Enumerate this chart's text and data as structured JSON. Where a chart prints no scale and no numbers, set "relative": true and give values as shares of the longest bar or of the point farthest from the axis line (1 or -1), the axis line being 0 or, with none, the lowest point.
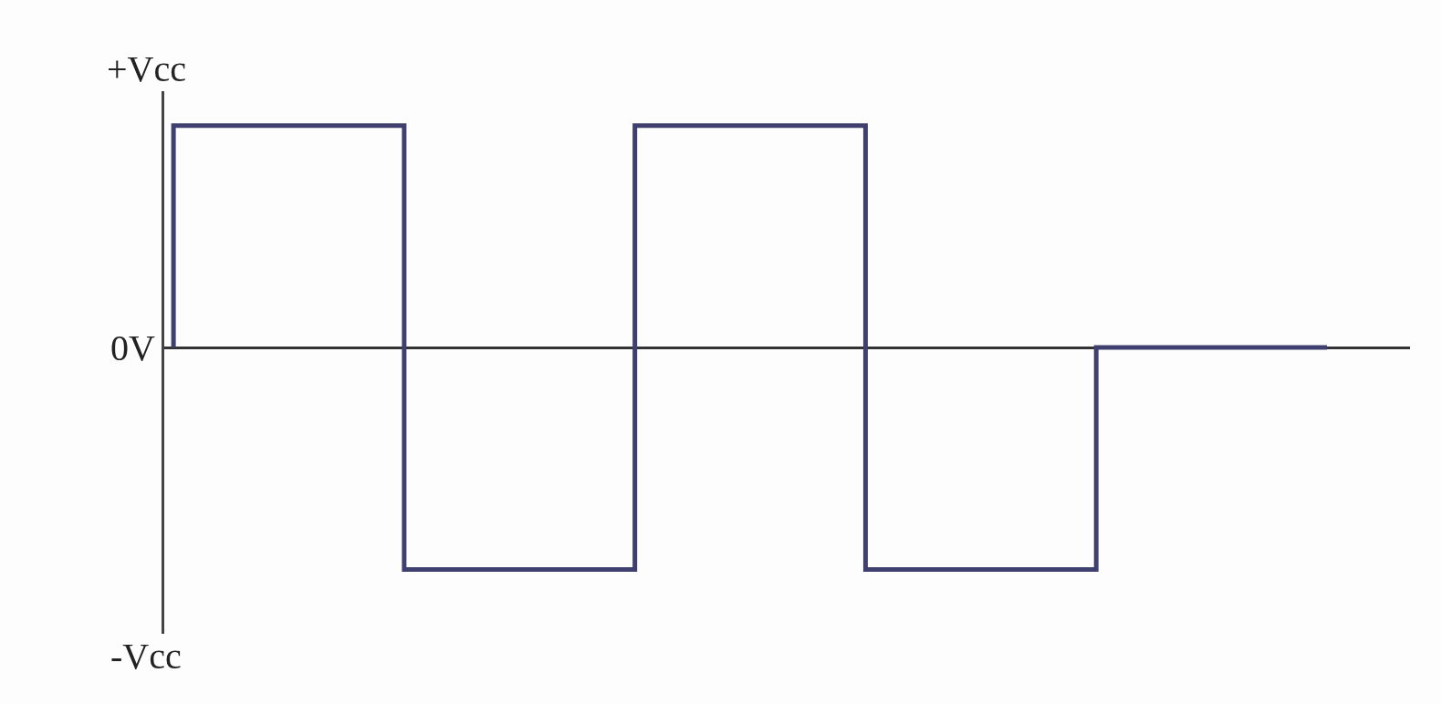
{
  "chart_data": {
    "type": "step",
    "categories": [
      null,
      null,
      null,
      null,
      null,
      null
    ],
    "values": [
      0,
      1,
      -1,
      1,
      -1,
      0
    ],
    "color": "#404070",
    "relative": true,
    "annotations": [
      "+Vcc",
      "0V",
      "-Vcc"
    ]
  }
}
